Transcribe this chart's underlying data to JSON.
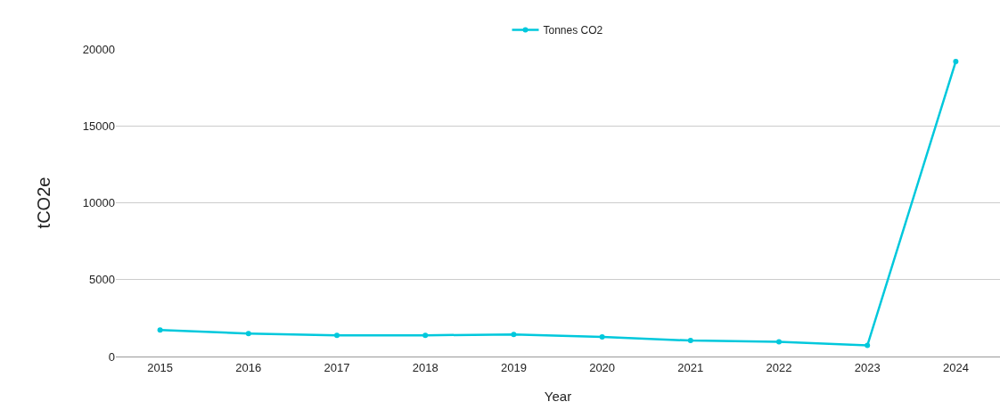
{
  "chart_data": {
    "type": "line",
    "xlabel": "Year",
    "ylabel": "tCO2e",
    "categories": [
      "2015",
      "2016",
      "2017",
      "2018",
      "2019",
      "2020",
      "2021",
      "2022",
      "2023",
      "2024"
    ],
    "series": [
      {
        "name": "Tonnes CO2",
        "color": "#00c8dc",
        "values": [
          1730,
          1500,
          1380,
          1380,
          1440,
          1270,
          1040,
          950,
          720,
          19190
        ]
      }
    ],
    "ylim": [
      0,
      20000
    ],
    "yticks": [
      0,
      5000,
      10000,
      15000,
      20000
    ],
    "grid": "y",
    "legend": "top",
    "marker": "circle",
    "line_style": "solid"
  }
}
